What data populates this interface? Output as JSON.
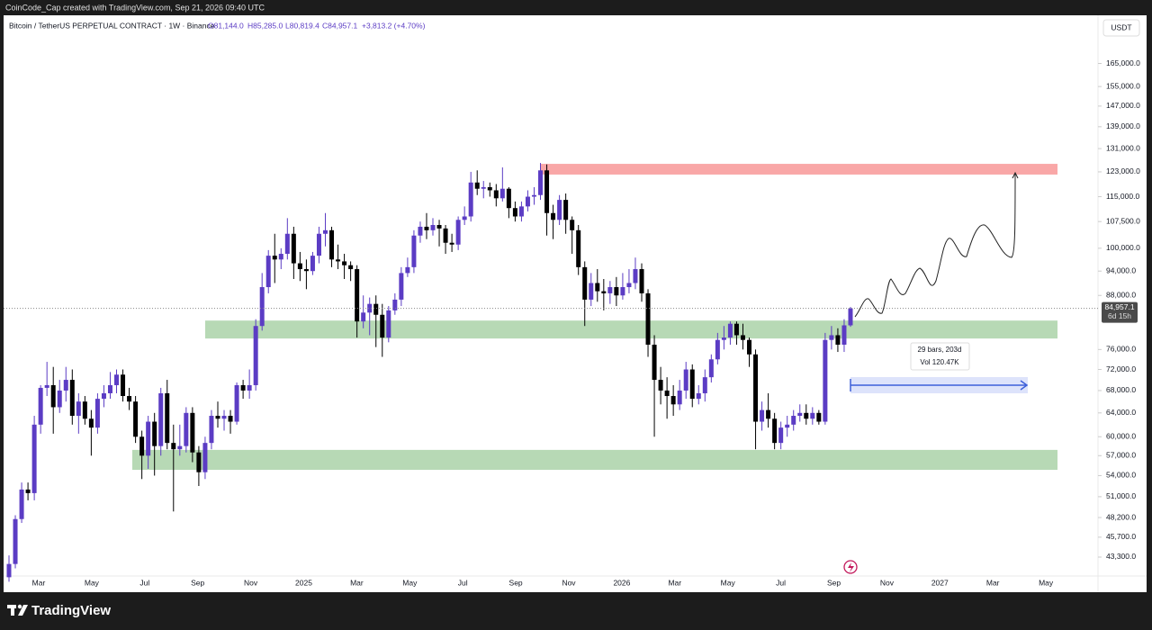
{
  "header": {
    "credit": "CoinCode_Cap created with TradingView.com, Sep 21, 2026 09:40 UTC",
    "symbol": "Bitcoin / TetherUS PERPETUAL CONTRACT · 1W · Binance",
    "open": "O81,144.0",
    "high": "H85,285.0",
    "low": "L80,819.4",
    "close": "C84,957.1",
    "change": "+3,813.2 (+4.70%)",
    "currency": "USDT"
  },
  "price_label": {
    "price": "84,957.1",
    "countdown": "6d 15h"
  },
  "measure": {
    "bars": "29 bars, 203d",
    "volume": "Vol 120.47K"
  },
  "footer": {
    "brand": "TradingView"
  },
  "chart_data": {
    "type": "candlestick",
    "log": true,
    "grid": false,
    "up_color": "#5b3cc4",
    "down_color": "#000000",
    "ylim": [
      39660,
      177750
    ],
    "yticks": [
      {
        "value": 43300,
        "label": "43,300.0"
      },
      {
        "value": 45700,
        "label": "45,700.0"
      },
      {
        "value": 48200,
        "label": "48,200.0"
      },
      {
        "value": 51000,
        "label": "51,000.0"
      },
      {
        "value": 54000,
        "label": "54,000.0"
      },
      {
        "value": 57000,
        "label": "57,000.0"
      },
      {
        "value": 60000,
        "label": "60,000.0"
      },
      {
        "value": 64000,
        "label": "64,000.0"
      },
      {
        "value": 68000,
        "label": "68,000.0"
      },
      {
        "value": 72000,
        "label": "72,000.0"
      },
      {
        "value": 76000,
        "label": "76,000.0"
      },
      {
        "value": 88000,
        "label": "88,000.0"
      },
      {
        "value": 94000,
        "label": "94,000.0"
      },
      {
        "value": 100000,
        "label": "100,000.0"
      },
      {
        "value": 107500,
        "label": "107,500.0"
      },
      {
        "value": 115000,
        "label": "115,000.0"
      },
      {
        "value": 123000,
        "label": "123,000.0"
      },
      {
        "value": 131000,
        "label": "131,000.0"
      },
      {
        "value": 139000,
        "label": "139,000.0"
      },
      {
        "value": 147000,
        "label": "147,000.0"
      },
      {
        "value": 155000,
        "label": "155,000.0"
      },
      {
        "value": 165000,
        "label": "165,000.0"
      }
    ],
    "xticks": [
      "Mar",
      "May",
      "Jul",
      "Sep",
      "Nov",
      "2025",
      "Mar",
      "May",
      "Jul",
      "Sep",
      "Nov",
      "2026",
      "Mar",
      "May",
      "Jul",
      "Sep",
      "Nov",
      "2027",
      "Mar",
      "May"
    ],
    "zones": [
      {
        "from": 122100,
        "to": 125700,
        "color": "#f9a7a7"
      },
      {
        "from": 78300,
        "to": 82200,
        "color": "#b7d9b5"
      },
      {
        "from": 54850,
        "to": 57900,
        "color": "#b7d9b5"
      }
    ],
    "ohlc": [
      [
        41000,
        43500,
        40500,
        42500
      ],
      [
        42500,
        48500,
        42000,
        48000
      ],
      [
        48000,
        53000,
        47500,
        52000
      ],
      [
        52000,
        53000,
        50500,
        51500
      ],
      [
        51500,
        63500,
        50500,
        62000
      ],
      [
        62000,
        69000,
        60500,
        68500
      ],
      [
        68500,
        73500,
        67000,
        69000
      ],
      [
        69000,
        72500,
        60500,
        65000
      ],
      [
        65000,
        70000,
        64000,
        68000
      ],
      [
        68000,
        72500,
        66000,
        70000
      ],
      [
        70000,
        72000,
        62000,
        63500
      ],
      [
        63500,
        67500,
        60500,
        66000
      ],
      [
        66000,
        67000,
        62000,
        63000
      ],
      [
        63000,
        64500,
        57000,
        61500
      ],
      [
        61500,
        67500,
        60500,
        66500
      ],
      [
        66500,
        69000,
        65000,
        67500
      ],
      [
        67500,
        71500,
        66500,
        69000
      ],
      [
        69000,
        72000,
        67500,
        71000
      ],
      [
        71000,
        72000,
        66000,
        67000
      ],
      [
        67000,
        68500,
        64500,
        66000
      ],
      [
        66000,
        67000,
        59000,
        60000
      ],
      [
        60000,
        61000,
        53500,
        57000
      ],
      [
        57000,
        63500,
        55000,
        62500
      ],
      [
        62500,
        64000,
        54000,
        58500
      ],
      [
        58500,
        68500,
        57000,
        67500
      ],
      [
        67500,
        70000,
        58000,
        59000
      ],
      [
        59000,
        62000,
        49000,
        58000
      ],
      [
        58000,
        62000,
        57000,
        58500
      ],
      [
        58500,
        65000,
        57500,
        64000
      ],
      [
        64000,
        65000,
        56000,
        57500
      ],
      [
        57500,
        58500,
        52500,
        54500
      ],
      [
        54500,
        60000,
        53500,
        59000
      ],
      [
        59000,
        64500,
        58000,
        63500
      ],
      [
        63500,
        66000,
        61500,
        63000
      ],
      [
        63000,
        64500,
        61000,
        63500
      ],
      [
        63500,
        64500,
        60500,
        62500
      ],
      [
        62500,
        69500,
        62000,
        69000
      ],
      [
        69000,
        70000,
        66500,
        68000
      ],
      [
        68000,
        72000,
        66500,
        69000
      ],
      [
        69000,
        82500,
        68000,
        81000
      ],
      [
        81000,
        93500,
        80000,
        90000
      ],
      [
        90000,
        99500,
        88500,
        98000
      ],
      [
        98000,
        104000,
        91000,
        97000
      ],
      [
        97000,
        100000,
        94500,
        98500
      ],
      [
        98500,
        108500,
        97000,
        104000
      ],
      [
        104000,
        106000,
        92000,
        96000
      ],
      [
        96000,
        99000,
        91500,
        94500
      ],
      [
        94500,
        97000,
        89500,
        94000
      ],
      [
        94000,
        99000,
        93000,
        98000
      ],
      [
        98000,
        106000,
        96000,
        104000
      ],
      [
        104000,
        110000,
        100500,
        105000
      ],
      [
        105000,
        106000,
        95000,
        97000
      ],
      [
        97000,
        101000,
        94500,
        96500
      ],
      [
        96500,
        98500,
        92000,
        95500
      ],
      [
        95500,
        96500,
        91500,
        94500
      ],
      [
        94500,
        95500,
        78500,
        82000
      ],
      [
        82000,
        88000,
        80500,
        84000
      ],
      [
        84000,
        87500,
        79000,
        86000
      ],
      [
        86000,
        88000,
        76500,
        83500
      ],
      [
        83500,
        86000,
        74500,
        78500
      ],
      [
        78500,
        85500,
        77500,
        84500
      ],
      [
        84500,
        88500,
        83500,
        87000
      ],
      [
        87000,
        95000,
        85500,
        93500
      ],
      [
        93500,
        97500,
        92500,
        95000
      ],
      [
        95000,
        105000,
        93500,
        103500
      ],
      [
        103500,
        107500,
        101500,
        106000
      ],
      [
        106000,
        110000,
        102500,
        105000
      ],
      [
        105000,
        108500,
        103500,
        106500
      ],
      [
        106500,
        108000,
        100500,
        105500
      ],
      [
        105500,
        106500,
        98500,
        101500
      ],
      [
        101500,
        104000,
        99000,
        101000
      ],
      [
        101000,
        109000,
        99500,
        108000
      ],
      [
        108000,
        112000,
        106500,
        109000
      ],
      [
        109000,
        123000,
        107500,
        119500
      ],
      [
        119500,
        123500,
        115500,
        117500
      ],
      [
        117500,
        120000,
        114500,
        118000
      ],
      [
        118000,
        119500,
        115000,
        117000
      ],
      [
        117000,
        119000,
        112000,
        114500
      ],
      [
        114500,
        124500,
        113500,
        117500
      ],
      [
        117500,
        118000,
        108500,
        111500
      ],
      [
        111500,
        113500,
        107500,
        109000
      ],
      [
        109000,
        113500,
        107500,
        112000
      ],
      [
        112000,
        117000,
        110500,
        115000
      ],
      [
        115000,
        118000,
        112500,
        115500
      ],
      [
        115500,
        126000,
        114000,
        123500
      ],
      [
        123500,
        125500,
        103500,
        110000
      ],
      [
        110000,
        112500,
        102500,
        108000
      ],
      [
        108000,
        115500,
        106500,
        114000
      ],
      [
        114000,
        116000,
        104000,
        108000
      ],
      [
        108000,
        109000,
        98500,
        105000
      ],
      [
        105000,
        106500,
        93000,
        95000
      ],
      [
        95000,
        96500,
        81000,
        87000
      ],
      [
        87000,
        93500,
        85500,
        91000
      ],
      [
        91000,
        94500,
        86500,
        89000
      ],
      [
        89000,
        92000,
        84500,
        88500
      ],
      [
        88500,
        91500,
        86000,
        90000
      ],
      [
        90000,
        92500,
        85500,
        88000
      ],
      [
        88000,
        93500,
        87000,
        90000
      ],
      [
        90000,
        94500,
        88500,
        91000
      ],
      [
        91000,
        97500,
        89500,
        94500
      ],
      [
        94500,
        96000,
        86500,
        88500
      ],
      [
        88500,
        89500,
        74500,
        77000
      ],
      [
        77000,
        79000,
        60000,
        70000
      ],
      [
        70000,
        72500,
        65500,
        68000
      ],
      [
        68000,
        70500,
        63000,
        67000
      ],
      [
        67000,
        69000,
        63500,
        65500
      ],
      [
        65500,
        70000,
        64500,
        68000
      ],
      [
        68000,
        73500,
        66500,
        72000
      ],
      [
        72000,
        73000,
        65000,
        66500
      ],
      [
        66500,
        69000,
        65500,
        67500
      ],
      [
        67500,
        72000,
        66000,
        70500
      ],
      [
        70500,
        75000,
        69500,
        74000
      ],
      [
        74000,
        79500,
        73000,
        78000
      ],
      [
        78000,
        81000,
        76000,
        78500
      ],
      [
        78500,
        82000,
        77000,
        81500
      ],
      [
        81500,
        82000,
        77000,
        79000
      ],
      [
        79000,
        81500,
        76000,
        78000
      ],
      [
        78000,
        78500,
        72500,
        75000
      ],
      [
        75000,
        76000,
        58000,
        62500
      ],
      [
        62500,
        66000,
        61000,
        64500
      ],
      [
        64500,
        67500,
        61500,
        63000
      ],
      [
        63000,
        64000,
        58000,
        59000
      ],
      [
        59000,
        62500,
        58000,
        61500
      ],
      [
        61500,
        63500,
        60000,
        62000
      ],
      [
        62000,
        64500,
        61000,
        63500
      ],
      [
        63500,
        65500,
        62500,
        64000
      ],
      [
        64000,
        65500,
        62000,
        63000
      ],
      [
        63000,
        65000,
        62000,
        64000
      ],
      [
        64000,
        64500,
        62000,
        62500
      ],
      [
        62500,
        79500,
        62000,
        78000
      ],
      [
        78000,
        81000,
        76000,
        79000
      ],
      [
        79000,
        80500,
        75500,
        77000
      ],
      [
        77000,
        82500,
        75500,
        81144
      ],
      [
        81144,
        85285,
        80819.4,
        84957.1
      ]
    ]
  }
}
